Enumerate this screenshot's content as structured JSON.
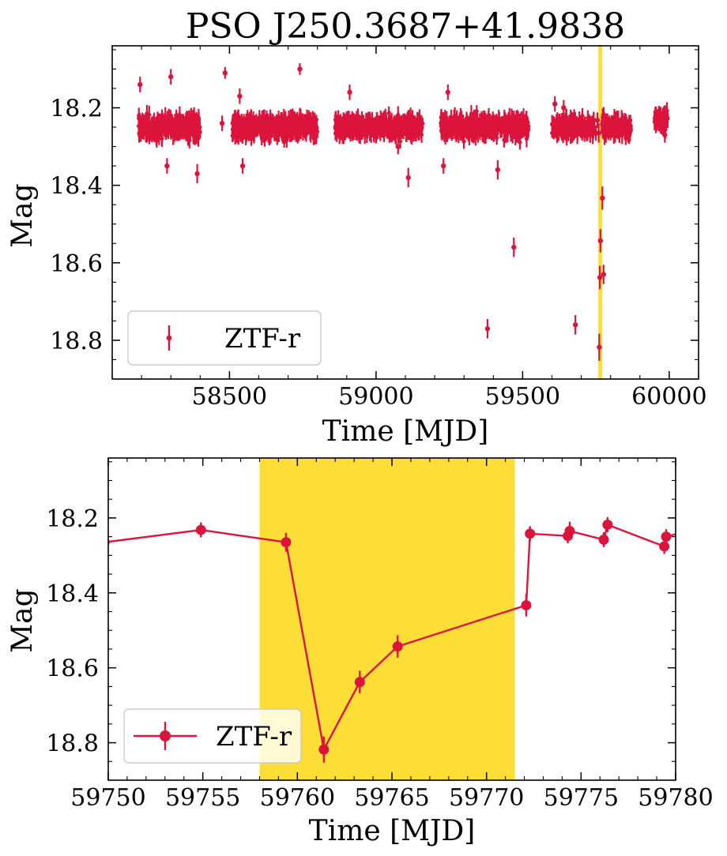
{
  "figure": {
    "title": "PSO J250.3687+41.9838"
  },
  "chart_data": [
    {
      "type": "scatter",
      "panel": "top",
      "title": "PSO J250.3687+41.9838",
      "xlabel": "Time [MJD]",
      "ylabel": "Mag",
      "xlim": [
        58100,
        60100
      ],
      "ylim": [
        18.9,
        18.04
      ],
      "y_inverted": true,
      "xticks": [
        58500,
        59000,
        59500,
        60000
      ],
      "xtick_labels": [
        "58500",
        "59000",
        "59500",
        "60000"
      ],
      "yticks": [
        18.2,
        18.4,
        18.6,
        18.8
      ],
      "ytick_labels": [
        "18.2",
        "18.4",
        "18.6",
        "18.8"
      ],
      "grid": false,
      "legend": {
        "placement": "lower-left",
        "entries": [
          "ZTF-r"
        ]
      },
      "highlight_band": {
        "x_from": 59758,
        "x_to": 59771.5,
        "color": "#fddc2b"
      },
      "series": [
        {
          "name": "ZTF-r",
          "color": "#dc143c",
          "marker": "point-errorbar",
          "dense_segments": [
            {
              "x_from": 58190,
              "x_to": 58400,
              "mean": 18.25,
              "scatter": 0.028
            },
            {
              "x_from": 58510,
              "x_to": 58800,
              "mean": 18.25,
              "scatter": 0.026
            },
            {
              "x_from": 58860,
              "x_to": 59160,
              "mean": 18.25,
              "scatter": 0.024
            },
            {
              "x_from": 59220,
              "x_to": 59520,
              "mean": 18.25,
              "scatter": 0.026
            },
            {
              "x_from": 59600,
              "x_to": 59745,
              "mean": 18.25,
              "scatter": 0.024
            },
            {
              "x_from": 59772,
              "x_to": 59870,
              "mean": 18.25,
              "scatter": 0.022
            },
            {
              "x_from": 59950,
              "x_to": 59995,
              "mean": 18.23,
              "scatter": 0.02
            }
          ],
          "points": [
            {
              "x": 58195,
              "y": 18.14,
              "err": 0.02
            },
            {
              "x": 58300,
              "y": 18.12,
              "err": 0.02
            },
            {
              "x": 58390,
              "y": 18.37,
              "err": 0.025
            },
            {
              "x": 58287,
              "y": 18.35,
              "err": 0.02
            },
            {
              "x": 58475,
              "y": 18.24,
              "err": 0.02
            },
            {
              "x": 58485,
              "y": 18.11,
              "err": 0.015
            },
            {
              "x": 58535,
              "y": 18.17,
              "err": 0.02
            },
            {
              "x": 58545,
              "y": 18.35,
              "err": 0.02
            },
            {
              "x": 58740,
              "y": 18.1,
              "err": 0.015
            },
            {
              "x": 58910,
              "y": 18.16,
              "err": 0.02
            },
            {
              "x": 59110,
              "y": 18.38,
              "err": 0.025
            },
            {
              "x": 59075,
              "y": 18.3,
              "err": 0.02
            },
            {
              "x": 59230,
              "y": 18.35,
              "err": 0.02
            },
            {
              "x": 59245,
              "y": 18.16,
              "err": 0.02
            },
            {
              "x": 59415,
              "y": 18.36,
              "err": 0.025
            },
            {
              "x": 59380,
              "y": 18.77,
              "err": 0.025
            },
            {
              "x": 59470,
              "y": 18.56,
              "err": 0.025
            },
            {
              "x": 59640,
              "y": 18.2,
              "err": 0.02
            },
            {
              "x": 59610,
              "y": 18.19,
              "err": 0.02
            },
            {
              "x": 59680,
              "y": 18.76,
              "err": 0.025
            },
            {
              "x": 59955,
              "y": 18.22,
              "err": 0.02
            },
            {
              "x": 59985,
              "y": 18.27,
              "err": 0.02
            },
            {
              "x": 59749.8,
              "y": 18.265,
              "err": 0.02
            },
            {
              "x": 59754.9,
              "y": 18.232,
              "err": 0.02
            },
            {
              "x": 59759.4,
              "y": 18.265,
              "err": 0.025
            },
            {
              "x": 59761.4,
              "y": 18.818,
              "err": 0.035
            },
            {
              "x": 59763.3,
              "y": 18.638,
              "err": 0.03
            },
            {
              "x": 59765.3,
              "y": 18.543,
              "err": 0.03
            },
            {
              "x": 59772.1,
              "y": 18.433,
              "err": 0.03
            },
            {
              "x": 59772.3,
              "y": 18.242,
              "err": 0.02
            },
            {
              "x": 59774.3,
              "y": 18.248,
              "err": 0.02
            },
            {
              "x": 59774.4,
              "y": 18.235,
              "err": 0.025
            },
            {
              "x": 59776.2,
              "y": 18.258,
              "err": 0.02
            },
            {
              "x": 59776.4,
              "y": 18.218,
              "err": 0.02
            },
            {
              "x": 59779.4,
              "y": 18.276,
              "err": 0.02
            },
            {
              "x": 59779.5,
              "y": 18.25,
              "err": 0.02
            },
            {
              "x": 59780.3,
              "y": 18.24,
              "err": 0.02
            },
            {
              "x": 59776,
              "y": 18.63,
              "err": 0.025
            }
          ]
        }
      ]
    },
    {
      "type": "line",
      "panel": "bottom",
      "xlabel": "Time [MJD]",
      "ylabel": "Mag",
      "xlim": [
        59750,
        59780
      ],
      "ylim": [
        18.9,
        18.04
      ],
      "y_inverted": true,
      "xticks": [
        59750,
        59755,
        59760,
        59765,
        59770,
        59775,
        59780
      ],
      "xtick_labels": [
        "59750",
        "59755",
        "59760",
        "59765",
        "59770",
        "59775",
        "59780"
      ],
      "yticks": [
        18.2,
        18.4,
        18.6,
        18.8
      ],
      "ytick_labels": [
        "18.2",
        "18.4",
        "18.6",
        "18.8"
      ],
      "grid": false,
      "legend": {
        "placement": "lower-left",
        "entries": [
          "ZTF-r"
        ]
      },
      "highlight_band": {
        "x_from": 59758,
        "x_to": 59771.5,
        "color": "#fddc2b"
      },
      "series": [
        {
          "name": "ZTF-r",
          "color": "#dc143c",
          "marker": "circle-errorbar-line",
          "points": [
            {
              "x": 59749.8,
              "y": 18.265,
              "err": 0.02
            },
            {
              "x": 59754.9,
              "y": 18.232,
              "err": 0.02
            },
            {
              "x": 59759.4,
              "y": 18.265,
              "err": 0.025
            },
            {
              "x": 59761.4,
              "y": 18.818,
              "err": 0.035
            },
            {
              "x": 59763.3,
              "y": 18.638,
              "err": 0.03
            },
            {
              "x": 59765.3,
              "y": 18.543,
              "err": 0.03
            },
            {
              "x": 59772.1,
              "y": 18.433,
              "err": 0.03
            },
            {
              "x": 59772.3,
              "y": 18.242,
              "err": 0.02
            },
            {
              "x": 59774.3,
              "y": 18.248,
              "err": 0.02
            },
            {
              "x": 59774.4,
              "y": 18.235,
              "err": 0.025
            },
            {
              "x": 59776.2,
              "y": 18.258,
              "err": 0.02
            },
            {
              "x": 59776.4,
              "y": 18.218,
              "err": 0.02
            },
            {
              "x": 59779.4,
              "y": 18.276,
              "err": 0.02
            },
            {
              "x": 59779.5,
              "y": 18.25,
              "err": 0.02
            },
            {
              "x": 59780.3,
              "y": 18.24,
              "err": 0.02
            }
          ]
        }
      ]
    }
  ]
}
